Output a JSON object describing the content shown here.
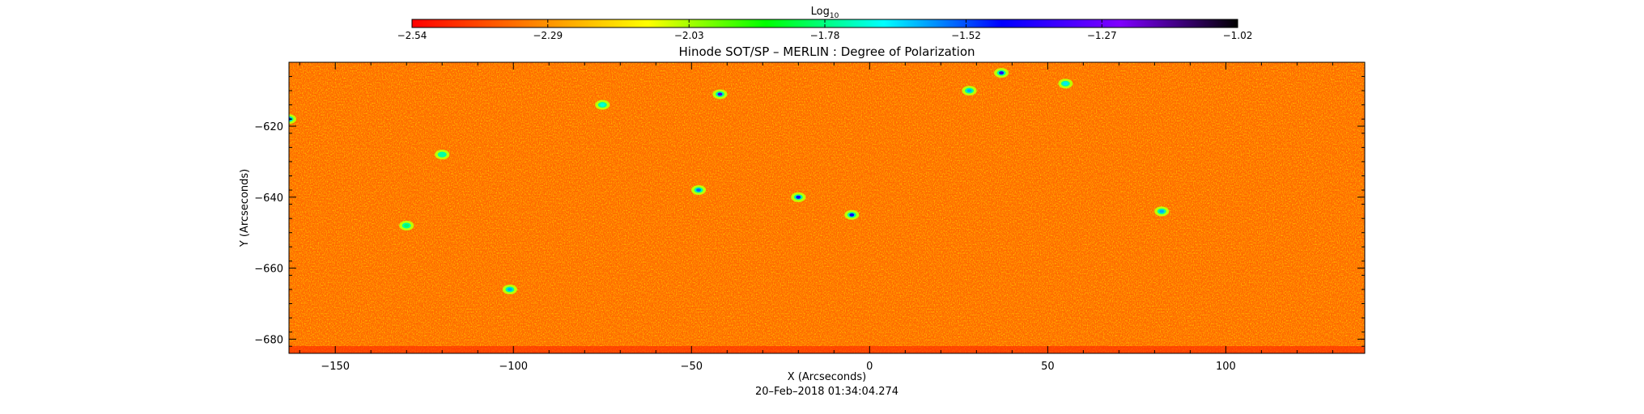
{
  "chart_data": {
    "type": "heatmap",
    "title": "Hinode SOT/SP – MERLIN : Degree of Polarization",
    "xlabel": "X (Arcseconds)",
    "ylabel": "Y (Arcseconds)",
    "timestamp": "20–Feb–2018 01:34:04.274",
    "xlim": [
      -163,
      139
    ],
    "ylim": [
      -684,
      -602
    ],
    "x_ticks": [
      -150,
      -100,
      -50,
      0,
      50,
      100
    ],
    "x_tick_labels": [
      "−150",
      "−100",
      "−50",
      "0",
      "50",
      "100"
    ],
    "y_ticks": [
      -620,
      -640,
      -660,
      -680
    ],
    "y_tick_labels": [
      "−620",
      "−640",
      "−660",
      "−680"
    ],
    "colorbar": {
      "label_base": "Log",
      "label_sub": "10",
      "scale": "log10",
      "range": [
        -2.54,
        -1.02
      ],
      "ticks": [
        -2.54,
        -2.29,
        -2.03,
        -1.78,
        -1.52,
        -1.27,
        -1.02
      ],
      "tick_labels": [
        "−2.54",
        "−2.29",
        "−2.03",
        "−1.78",
        "−1.52",
        "−1.27",
        "−1.02"
      ],
      "colors": [
        "#ff0000",
        "#ff7f00",
        "#ffff00",
        "#00ff00",
        "#00ffff",
        "#0000ff",
        "#7f00ff",
        "#000000"
      ]
    },
    "background_level": -2.36,
    "features": [
      {
        "x": 37,
        "y": -605,
        "value": -1.4
      },
      {
        "x": -42,
        "y": -611,
        "value": -1.35
      },
      {
        "x": -5,
        "y": -645,
        "value": -1.45
      },
      {
        "x": -20,
        "y": -640,
        "value": -1.42
      },
      {
        "x": -48,
        "y": -638,
        "value": -1.55
      },
      {
        "x": -101,
        "y": -666,
        "value": -1.6
      },
      {
        "x": -163,
        "y": -618,
        "value": -1.5
      },
      {
        "x": 28,
        "y": -610,
        "value": -1.6
      },
      {
        "x": 55,
        "y": -608,
        "value": -1.65
      },
      {
        "x": -75,
        "y": -614,
        "value": -1.7
      },
      {
        "x": 82,
        "y": -644,
        "value": -1.6
      },
      {
        "x": -120,
        "y": -628,
        "value": -1.75
      },
      {
        "x": -130,
        "y": -648,
        "value": -1.8
      }
    ]
  }
}
